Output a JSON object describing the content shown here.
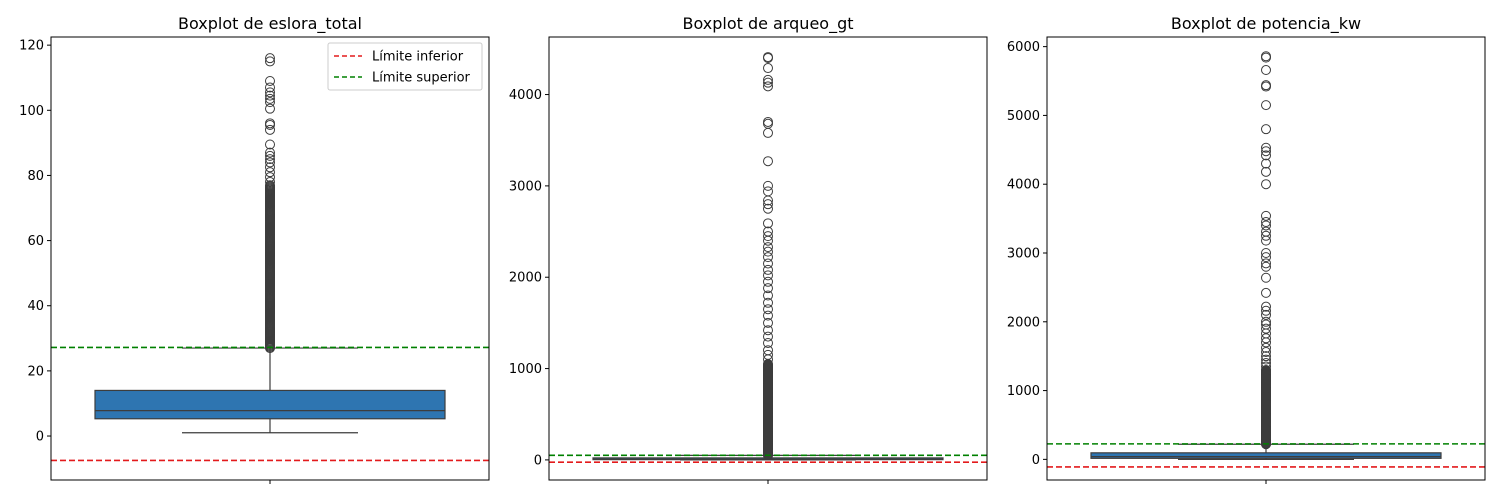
{
  "chart_data": [
    {
      "type": "box",
      "title": "Boxplot de eslora_total",
      "xlabel": "",
      "ylabel": "",
      "ylim": [
        -13.5,
        122.5
      ],
      "yticks": [
        0,
        20,
        40,
        60,
        80,
        100,
        120
      ],
      "grid": false,
      "box": {
        "whisker_low": 1.0,
        "q1": 5.3,
        "median": 7.8,
        "q3": 14.0,
        "whisker_high": 27.0,
        "color": "#2e75b1"
      },
      "outliers": {
        "range": [
          27.0,
          77.0
        ],
        "values": [
          78.0,
          79.5,
          81.0,
          82.5,
          84.0,
          85.0,
          86.0,
          87.0,
          89.5,
          94.0,
          95.5,
          96.0,
          100.5,
          102.5,
          103.5,
          104.5,
          105.5,
          107.0,
          109.0,
          115.0,
          116.0
        ]
      },
      "reference_lines": [
        {
          "name": "Límite inferior",
          "y": -7.5,
          "color": "#e31a1c",
          "style": "dashed"
        },
        {
          "name": "Límite superior",
          "y": 27.2,
          "color": "#008000",
          "style": "dashed"
        }
      ],
      "legend": {
        "placement": "top-right",
        "entries": [
          "Límite inferior",
          "Límite superior"
        ]
      }
    },
    {
      "type": "box",
      "title": "Boxplot de arqueo_gt",
      "xlabel": "",
      "ylabel": "",
      "ylim": [
        -220,
        4630
      ],
      "yticks": [
        0,
        1000,
        2000,
        3000,
        4000
      ],
      "grid": false,
      "box": {
        "whisker_low": 0,
        "q1": 3,
        "median": 8,
        "q3": 22,
        "whisker_high": 50,
        "color": "#2e75b1"
      },
      "outliers": {
        "range": [
          50,
          1050
        ],
        "values": [
          1100,
          1150,
          1200,
          1280,
          1350,
          1420,
          1500,
          1580,
          1650,
          1720,
          1800,
          1880,
          1950,
          2020,
          2080,
          2150,
          2220,
          2280,
          2330,
          2400,
          2450,
          2500,
          2590,
          2750,
          2800,
          2840,
          2940,
          3000,
          3270,
          3580,
          3680,
          3700,
          4090,
          4130,
          4160,
          4290,
          4400,
          4410
        ]
      },
      "reference_lines": [
        {
          "name": "Límite inferior",
          "y": -25,
          "color": "#e31a1c",
          "style": "dashed"
        },
        {
          "name": "Límite superior",
          "y": 50,
          "color": "#008000",
          "style": "dashed"
        }
      ]
    },
    {
      "type": "box",
      "title": "Boxplot de potencia_kw",
      "xlabel": "",
      "ylabel": "",
      "ylim": [
        -300,
        6140
      ],
      "yticks": [
        0,
        1000,
        2000,
        3000,
        4000,
        5000,
        6000
      ],
      "grid": false,
      "box": {
        "whisker_low": 0,
        "q1": 15,
        "median": 40,
        "q3": 95,
        "whisker_high": 220,
        "color": "#2e75b1"
      },
      "outliers": {
        "range": [
          220,
          1300
        ],
        "values": [
          1350,
          1400,
          1450,
          1500,
          1560,
          1620,
          1700,
          1760,
          1830,
          1900,
          1960,
          2000,
          2100,
          2160,
          2220,
          2420,
          2640,
          2800,
          2850,
          2940,
          3000,
          3180,
          3250,
          3310,
          3400,
          3450,
          3540,
          4000,
          4180,
          4300,
          4420,
          4480,
          4530,
          4800,
          5150,
          5420,
          5440,
          5660,
          5840,
          5860
        ]
      },
      "reference_lines": [
        {
          "name": "Límite inferior",
          "y": -110,
          "color": "#e31a1c",
          "style": "dashed"
        },
        {
          "name": "Límite superior",
          "y": 225,
          "color": "#008000",
          "style": "dashed"
        }
      ]
    }
  ]
}
